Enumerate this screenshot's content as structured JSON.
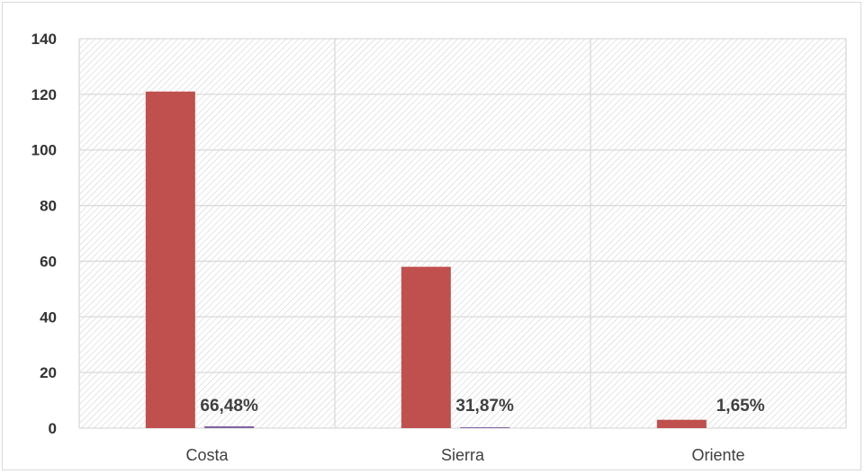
{
  "chart_data": {
    "type": "bar",
    "categories": [
      "Costa",
      "Sierra",
      "Oriente"
    ],
    "series": [
      {
        "values": [
          121,
          58,
          3
        ],
        "color": "#c0504d"
      },
      {
        "values": [
          0.6648,
          0.3187,
          0.0165
        ],
        "color": "#8064a2"
      }
    ],
    "data_labels": [
      "66,48%",
      "31,87%",
      "1,65%"
    ],
    "y_ticks": [
      "0",
      "20",
      "40",
      "60",
      "80",
      "100",
      "120",
      "140"
    ],
    "ylim": [
      0,
      140
    ],
    "title": "",
    "xlabel": "",
    "ylabel": "",
    "grid": true,
    "legend": "none",
    "plot_background": "diagonal-hatch",
    "grid_color": "#d9d9d9"
  }
}
